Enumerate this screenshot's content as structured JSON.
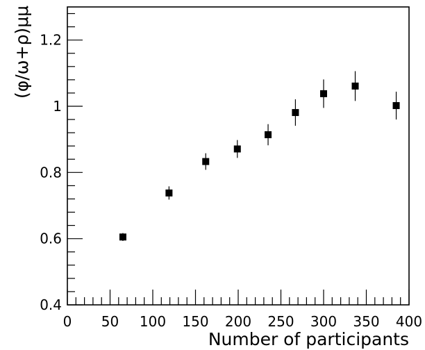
{
  "chart_data": {
    "type": "scatter",
    "title": "",
    "xlabel": "Number of participants",
    "ylabel": "(φ/ω+ρ)μμ",
    "xlim": [
      0,
      400
    ],
    "ylim": [
      0.4,
      1.3
    ],
    "x_ticks": [
      "0",
      "50",
      "100",
      "150",
      "200",
      "250",
      "300",
      "350",
      "400"
    ],
    "y_ticks": [
      "0.4",
      "0.6",
      "0.8",
      "1",
      "1.2"
    ],
    "grid": false,
    "marker_color": "#000000",
    "points": [
      {
        "x": 65,
        "y": 0.605,
        "err": 0.012
      },
      {
        "x": 119,
        "y": 0.738,
        "err": 0.02
      },
      {
        "x": 162,
        "y": 0.833,
        "err": 0.025
      },
      {
        "x": 199,
        "y": 0.871,
        "err": 0.027
      },
      {
        "x": 235,
        "y": 0.914,
        "err": 0.032
      },
      {
        "x": 267,
        "y": 0.981,
        "err": 0.04
      },
      {
        "x": 300,
        "y": 1.038,
        "err": 0.043
      },
      {
        "x": 337,
        "y": 1.061,
        "err": 0.045
      },
      {
        "x": 385,
        "y": 1.002,
        "err": 0.042
      }
    ]
  }
}
